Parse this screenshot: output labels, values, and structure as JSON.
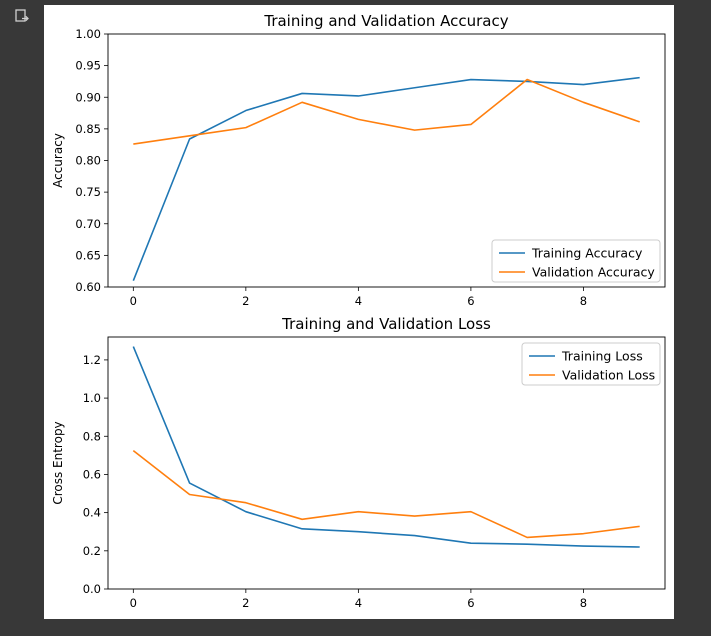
{
  "colors": {
    "background": "#383838",
    "figure_bg": "#ffffff",
    "training": "#1f77b4",
    "validation": "#ff7f0e"
  },
  "icons": {
    "output": "output-arrow-icon"
  },
  "chart_data": [
    {
      "type": "line",
      "title": "Training and Validation Accuracy",
      "xlabel": "",
      "ylabel": "Accuracy",
      "xlim": [
        -0.45,
        9.45
      ],
      "ylim": [
        0.6,
        1.0
      ],
      "xticks": [
        0,
        2,
        4,
        6,
        8
      ],
      "yticks": [
        0.6,
        0.65,
        0.7,
        0.75,
        0.8,
        0.85,
        0.9,
        0.95,
        1.0
      ],
      "ytick_labels": [
        "0.60",
        "0.65",
        "0.70",
        "0.75",
        "0.80",
        "0.85",
        "0.90",
        "0.95",
        "1.00"
      ],
      "legend_position": "lower-right",
      "x": [
        0,
        1,
        2,
        3,
        4,
        5,
        6,
        7,
        8,
        9
      ],
      "series": [
        {
          "name": "Training Accuracy",
          "color": "#1f77b4",
          "values": [
            0.61,
            0.834,
            0.879,
            0.906,
            0.902,
            0.915,
            0.928,
            0.925,
            0.92,
            0.931
          ]
        },
        {
          "name": "Validation Accuracy",
          "color": "#ff7f0e",
          "values": [
            0.826,
            0.839,
            0.852,
            0.892,
            0.865,
            0.848,
            0.857,
            0.928,
            0.892,
            0.861
          ]
        }
      ]
    },
    {
      "type": "line",
      "title": "Training and Validation Loss",
      "xlabel": "",
      "ylabel": "Cross Entropy",
      "xlim": [
        -0.45,
        9.45
      ],
      "ylim": [
        0.0,
        1.32
      ],
      "xticks": [
        0,
        2,
        4,
        6,
        8
      ],
      "yticks": [
        0.0,
        0.2,
        0.4,
        0.6,
        0.8,
        1.0,
        1.2
      ],
      "ytick_labels": [
        "0.0",
        "0.2",
        "0.4",
        "0.6",
        "0.8",
        "1.0",
        "1.2"
      ],
      "legend_position": "upper-right",
      "x": [
        0,
        1,
        2,
        3,
        4,
        5,
        6,
        7,
        8,
        9
      ],
      "series": [
        {
          "name": "Training Loss",
          "color": "#1f77b4",
          "values": [
            1.27,
            0.555,
            0.405,
            0.315,
            0.3,
            0.28,
            0.24,
            0.235,
            0.225,
            0.22
          ]
        },
        {
          "name": "Validation Loss",
          "color": "#ff7f0e",
          "values": [
            0.725,
            0.495,
            0.452,
            0.365,
            0.405,
            0.382,
            0.405,
            0.27,
            0.29,
            0.328
          ]
        }
      ]
    }
  ]
}
